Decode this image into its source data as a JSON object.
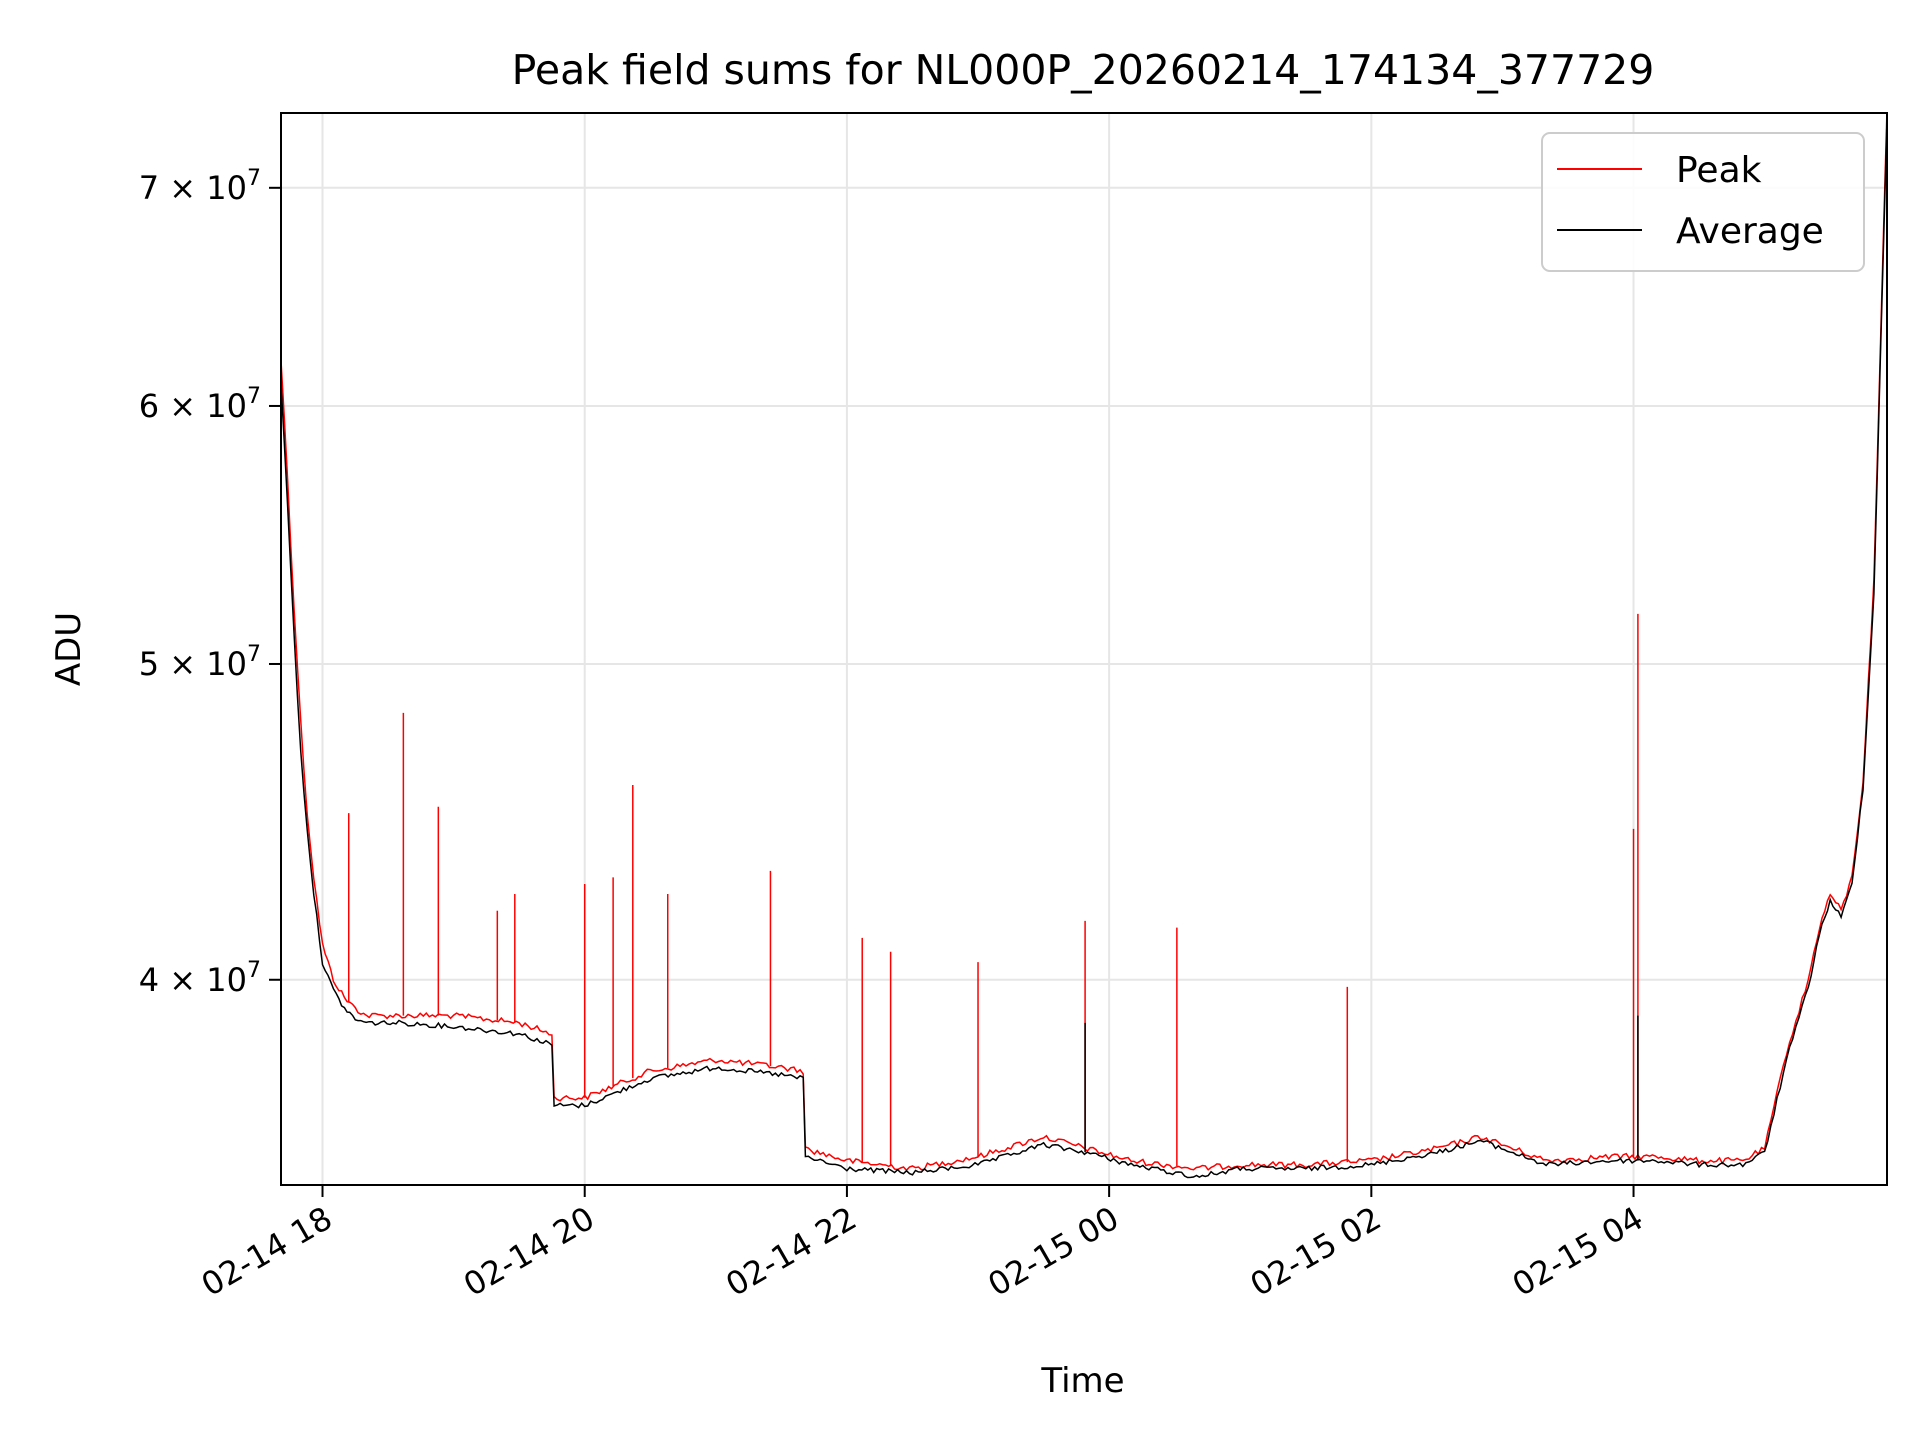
{
  "chart_data": {
    "type": "line",
    "title": "Peak field sums for NL000P_20260214_174134_377729",
    "xlabel": "Time",
    "ylabel": "ADU",
    "y_scale": "log",
    "xlim": [
      "2026-02-14T17:41",
      "2026-02-15T05:56"
    ],
    "ylim": [
      34600000,
      73800000
    ],
    "x_ticks": [
      "02-14 18",
      "02-14 20",
      "02-14 22",
      "02-15 00",
      "02-15 02",
      "02-15 04"
    ],
    "x_tick_values": [
      "2026-02-14T18:00",
      "2026-02-14T20:00",
      "2026-02-14T22:00",
      "2026-02-15T00:00",
      "2026-02-15T02:00",
      "2026-02-15T04:00"
    ],
    "y_ticks": [
      {
        "value": 40000000,
        "mantissa": "4",
        "base": "10",
        "exp": "7"
      },
      {
        "value": 50000000,
        "mantissa": "5",
        "base": "10",
        "exp": "7"
      },
      {
        "value": 60000000,
        "mantissa": "6",
        "base": "10",
        "exp": "7"
      },
      {
        "value": 70000000,
        "mantissa": "7",
        "base": "10",
        "exp": "7"
      }
    ],
    "grid": true,
    "legend_position": "top-right",
    "series": [
      {
        "name": "Peak",
        "color": "#ff0000",
        "x": [
          "2026-02-14T17:41",
          "2026-02-14T17:44",
          "2026-02-14T17:47",
          "2026-02-14T17:50",
          "2026-02-14T17:53",
          "2026-02-14T17:56",
          "2026-02-14T18:00",
          "2026-02-14T18:05",
          "2026-02-14T18:10",
          "2026-02-14T18:15",
          "2026-02-14T18:20",
          "2026-02-14T18:35",
          "2026-02-14T19:00",
          "2026-02-14T19:30",
          "2026-02-14T19:45",
          "2026-02-14T19:46",
          "2026-02-14T20:00",
          "2026-02-14T20:30",
          "2026-02-14T21:00",
          "2026-02-14T21:30",
          "2026-02-14T21:40",
          "2026-02-14T21:41",
          "2026-02-14T22:00",
          "2026-02-14T22:30",
          "2026-02-14T23:00",
          "2026-02-14T23:30",
          "2026-02-14T23:50",
          "2026-02-15T00:10",
          "2026-02-15T00:40",
          "2026-02-15T01:00",
          "2026-02-15T01:30",
          "2026-02-15T02:00",
          "2026-02-15T02:30",
          "2026-02-15T02:50",
          "2026-02-15T03:20",
          "2026-02-15T03:50",
          "2026-02-15T04:10",
          "2026-02-15T04:30",
          "2026-02-15T04:50",
          "2026-02-15T05:00",
          "2026-02-15T05:10",
          "2026-02-15T05:20",
          "2026-02-15T05:25",
          "2026-02-15T05:30",
          "2026-02-15T05:35",
          "2026-02-15T05:40",
          "2026-02-15T05:45",
          "2026-02-15T05:50",
          "2026-02-15T05:56"
        ],
        "y": [
          62000000,
          57000000,
          52000000,
          48000000,
          45000000,
          43000000,
          41000000,
          40000000,
          39500000,
          39200000,
          39000000,
          39000000,
          39000000,
          38800000,
          38500000,
          36800000,
          36800000,
          37500000,
          37800000,
          37600000,
          37500000,
          35500000,
          35200000,
          35000000,
          35300000,
          35800000,
          35500000,
          35200000,
          35000000,
          35100000,
          35100000,
          35200000,
          35500000,
          35800000,
          35200000,
          35300000,
          35300000,
          35200000,
          35200000,
          35500000,
          38000000,
          40000000,
          41500000,
          42500000,
          42000000,
          43000000,
          46000000,
          53000000,
          74000000
        ]
      },
      {
        "name": "Average",
        "color": "#000000",
        "x": [
          "2026-02-14T17:41",
          "2026-02-14T17:44",
          "2026-02-14T17:47",
          "2026-02-14T17:50",
          "2026-02-14T17:53",
          "2026-02-14T17:56",
          "2026-02-14T18:00",
          "2026-02-14T18:05",
          "2026-02-14T18:10",
          "2026-02-14T18:15",
          "2026-02-14T18:20",
          "2026-02-14T18:35",
          "2026-02-14T19:00",
          "2026-02-14T19:30",
          "2026-02-14T19:45",
          "2026-02-14T19:46",
          "2026-02-14T20:00",
          "2026-02-14T20:30",
          "2026-02-14T21:00",
          "2026-02-14T21:30",
          "2026-02-14T21:40",
          "2026-02-14T21:41",
          "2026-02-14T22:00",
          "2026-02-14T22:30",
          "2026-02-14T23:00",
          "2026-02-14T23:30",
          "2026-02-14T23:50",
          "2026-02-15T00:10",
          "2026-02-15T00:40",
          "2026-02-15T01:00",
          "2026-02-15T01:30",
          "2026-02-15T02:00",
          "2026-02-15T02:30",
          "2026-02-15T02:50",
          "2026-02-15T03:20",
          "2026-02-15T03:50",
          "2026-02-15T04:10",
          "2026-02-15T04:30",
          "2026-02-15T04:50",
          "2026-02-15T05:00",
          "2026-02-15T05:10",
          "2026-02-15T05:20",
          "2026-02-15T05:25",
          "2026-02-15T05:30",
          "2026-02-15T05:35",
          "2026-02-15T05:40",
          "2026-02-15T05:45",
          "2026-02-15T05:50",
          "2026-02-15T05:56"
        ],
        "y": [
          61000000,
          56000000,
          51000000,
          47000000,
          44500000,
          42500000,
          40500000,
          39700000,
          39200000,
          38900000,
          38800000,
          38800000,
          38700000,
          38500000,
          38200000,
          36600000,
          36600000,
          37300000,
          37600000,
          37400000,
          37300000,
          35300000,
          35000000,
          34900000,
          35100000,
          35600000,
          35400000,
          35100000,
          34800000,
          35000000,
          35000000,
          35100000,
          35400000,
          35700000,
          35100000,
          35200000,
          35200000,
          35100000,
          35100000,
          35400000,
          37800000,
          39800000,
          41300000,
          42300000,
          41800000,
          42800000,
          45800000,
          52500000,
          73500000
        ]
      }
    ],
    "spikes": [
      {
        "series": "Peak",
        "x": "2026-02-14T18:12",
        "y": 45000000
      },
      {
        "series": "Peak",
        "x": "2026-02-14T18:37",
        "y": 48300000
      },
      {
        "series": "Peak",
        "x": "2026-02-14T18:53",
        "y": 45200000
      },
      {
        "series": "Peak",
        "x": "2026-02-14T19:20",
        "y": 42000000
      },
      {
        "series": "Peak",
        "x": "2026-02-14T19:28",
        "y": 42500000
      },
      {
        "series": "Peak",
        "x": "2026-02-14T20:00",
        "y": 42800000
      },
      {
        "series": "Peak",
        "x": "2026-02-14T20:13",
        "y": 43000000
      },
      {
        "series": "Peak",
        "x": "2026-02-14T20:22",
        "y": 45900000
      },
      {
        "series": "Peak",
        "x": "2026-02-14T20:38",
        "y": 42500000
      },
      {
        "series": "Peak",
        "x": "2026-02-14T21:25",
        "y": 43200000
      },
      {
        "series": "Peak",
        "x": "2026-02-14T22:07",
        "y": 41200000
      },
      {
        "series": "Peak",
        "x": "2026-02-14T22:20",
        "y": 40800000
      },
      {
        "series": "Peak",
        "x": "2026-02-14T23:00",
        "y": 40500000
      },
      {
        "series": "Peak",
        "x": "2026-02-14T23:49",
        "y": 41700000
      },
      {
        "series": "Peak",
        "x": "2026-02-15T00:31",
        "y": 41500000
      },
      {
        "series": "Peak",
        "x": "2026-02-15T01:49",
        "y": 39800000
      },
      {
        "series": "Peak",
        "x": "2026-02-15T04:00",
        "y": 44500000
      },
      {
        "series": "Peak",
        "x": "2026-02-15T04:02",
        "y": 51800000
      },
      {
        "series": "Average",
        "x": "2026-02-14T23:49",
        "y": 38800000
      },
      {
        "series": "Average",
        "x": "2026-02-15T04:02",
        "y": 39000000
      }
    ]
  }
}
